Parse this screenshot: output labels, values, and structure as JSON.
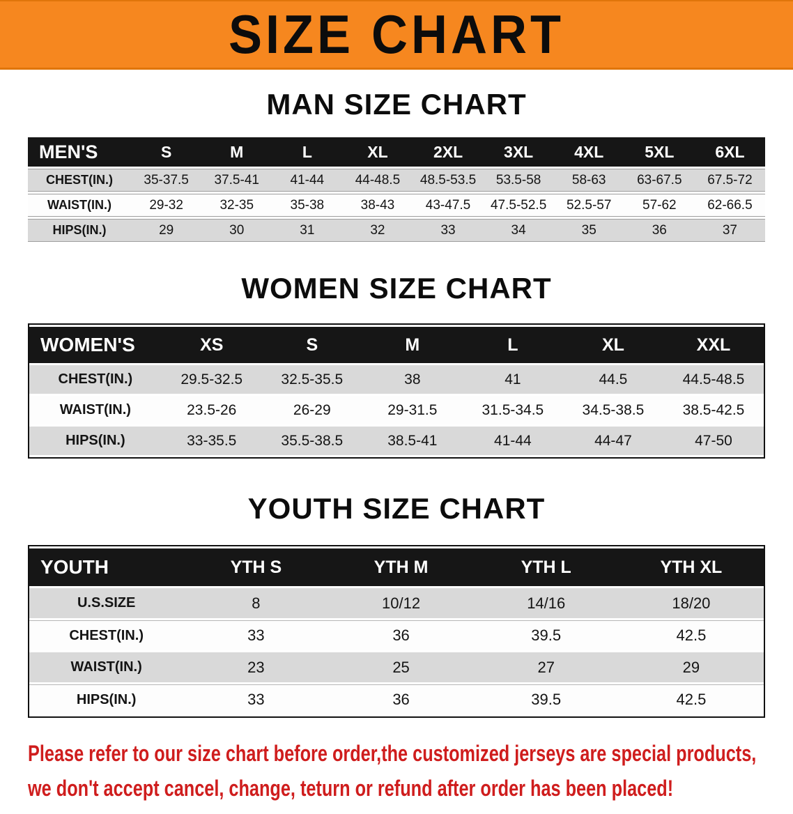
{
  "banner": {
    "title": "SIZE CHART"
  },
  "colors": {
    "banner_bg": "#f6871f",
    "table_header_bg": "#161616",
    "row_shade": "#d9d9d9",
    "notice_red": "#cf1d1d"
  },
  "sections": {
    "men": {
      "heading": "MAN SIZE CHART",
      "table": {
        "header": [
          "MEN'S",
          "S",
          "M",
          "L",
          "XL",
          "2XL",
          "3XL",
          "4XL",
          "5XL",
          "6XL"
        ],
        "rows": [
          {
            "label": "CHEST(IN.)",
            "values": [
              "35-37.5",
              "37.5-41",
              "41-44",
              "44-48.5",
              "48.5-53.5",
              "53.5-58",
              "58-63",
              "63-67.5",
              "67.5-72"
            ]
          },
          {
            "label": "WAIST(IN.)",
            "values": [
              "29-32",
              "32-35",
              "35-38",
              "38-43",
              "43-47.5",
              "47.5-52.5",
              "52.5-57",
              "57-62",
              "62-66.5"
            ]
          },
          {
            "label": "HIPS(IN.)",
            "values": [
              "29",
              "30",
              "31",
              "32",
              "33",
              "34",
              "35",
              "36",
              "37"
            ]
          }
        ]
      }
    },
    "women": {
      "heading": "WOMEN SIZE CHART",
      "table": {
        "header": [
          "WOMEN'S",
          "XS",
          "S",
          "M",
          "L",
          "XL",
          "XXL"
        ],
        "rows": [
          {
            "label": "CHEST(IN.)",
            "values": [
              "29.5-32.5",
              "32.5-35.5",
              "38",
              "41",
              "44.5",
              "44.5-48.5"
            ]
          },
          {
            "label": "WAIST(IN.)",
            "values": [
              "23.5-26",
              "26-29",
              "29-31.5",
              "31.5-34.5",
              "34.5-38.5",
              "38.5-42.5"
            ]
          },
          {
            "label": "HIPS(IN.)",
            "values": [
              "33-35.5",
              "35.5-38.5",
              "38.5-41",
              "41-44",
              "44-47",
              "47-50"
            ]
          }
        ]
      }
    },
    "youth": {
      "heading": "YOUTH SIZE CHART",
      "table": {
        "header": [
          "YOUTH",
          "YTH S",
          "YTH M",
          "YTH L",
          "YTH XL"
        ],
        "rows": [
          {
            "label": "U.S.SIZE",
            "values": [
              "8",
              "10/12",
              "14/16",
              "18/20"
            ]
          },
          {
            "label": "CHEST(IN.)",
            "values": [
              "33",
              "36",
              "39.5",
              "42.5"
            ]
          },
          {
            "label": "WAIST(IN.)",
            "values": [
              "23",
              "25",
              "27",
              "29"
            ]
          },
          {
            "label": "HIPS(IN.)",
            "values": [
              "33",
              "36",
              "39.5",
              "42.5"
            ]
          }
        ]
      }
    }
  },
  "footer": {
    "line1": "Please refer to our size chart before order,the customized jerseys are special products,",
    "line2": "we don't accept cancel, change, teturn or refund after order has been placed!"
  }
}
